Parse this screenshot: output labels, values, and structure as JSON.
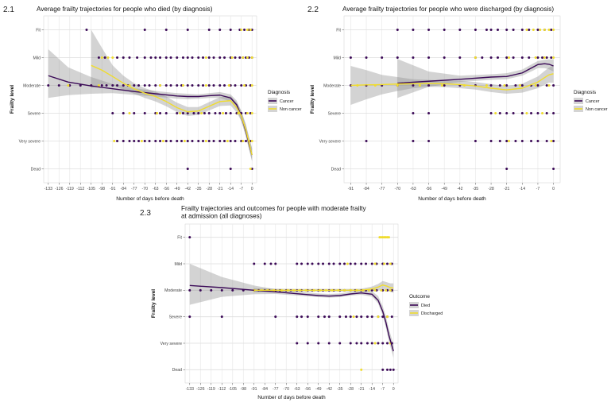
{
  "figure": {
    "colors": {
      "cancer": "#3b0a57",
      "noncancer": "#f0dc2e",
      "grid": "#e9e9e9",
      "ribbon": "#8c8c8c"
    }
  },
  "chart_data": [
    {
      "panel_label": "2.1",
      "type": "scatter",
      "title": "Average frailty trajectories for people who died (by diagnosis)",
      "xlabel": "Number of days before death",
      "ylabel": "Frailty level",
      "x_ticks": [
        -133,
        -126,
        -119,
        -112,
        -105,
        -98,
        -91,
        -84,
        -77,
        -70,
        -63,
        -56,
        -49,
        -42,
        -35,
        -28,
        -21,
        -14,
        -7,
        0
      ],
      "xlim": [
        -136,
        3
      ],
      "y_categories": [
        "Dead",
        "Very severe",
        "Severe",
        "Moderate",
        "Mild",
        "Fit"
      ],
      "legend": {
        "title": "Diagnosis",
        "position": "right",
        "entries": [
          "Cancer",
          "Non cancer"
        ]
      },
      "grid": true,
      "points": {
        "Fit": {
          "Cancer": [
            -108,
            -70,
            -56,
            -42,
            -28,
            -21,
            -14,
            -8,
            -5,
            -2,
            0
          ],
          "Non cancer": [
            -7,
            -3,
            -1
          ]
        },
        "Mild": {
          "Cancer": [
            -100,
            -96,
            -88,
            -84,
            -80,
            -75,
            -70,
            -66,
            -63,
            -60,
            -56,
            -53,
            -49,
            -45,
            -42,
            -39,
            -35,
            -32,
            -28,
            -25,
            -21,
            -18,
            -14,
            -11,
            -8,
            -6,
            -4,
            -2,
            0
          ],
          "Non cancer": [
            -98,
            -94,
            -91,
            -30,
            -13,
            -6,
            -3,
            0
          ]
        },
        "Moderate": {
          "Cancer": [
            -133,
            -126,
            -119,
            -112,
            -105,
            -98,
            -95,
            -91,
            -88,
            -84,
            -81,
            -77,
            -74,
            -70,
            -67,
            -63,
            -60,
            -56,
            -53,
            -49,
            -46,
            -42,
            -39,
            -35,
            -32,
            -28,
            -25,
            -21,
            -18,
            -14,
            -11,
            -7,
            -4,
            -1
          ],
          "Non cancer": [
            -120,
            -100,
            -80,
            -60,
            -45,
            -30,
            -15,
            -5,
            0
          ]
        },
        "Severe": {
          "Cancer": [
            -91,
            -84,
            -77,
            -70,
            -63,
            -60,
            -56,
            -49,
            -45,
            -42,
            -38,
            -35,
            -31,
            -28,
            -24,
            -21,
            -17,
            -14,
            -10,
            -7,
            -4,
            -1
          ],
          "Non cancer": [
            -80,
            -62,
            -47,
            -33,
            -19,
            -9,
            -3,
            0
          ]
        },
        "Very severe": {
          "Cancer": [
            -88,
            -84,
            -80,
            -77,
            -74,
            -70,
            -67,
            -63,
            -60,
            -56,
            -53,
            -49,
            -46,
            -42,
            -39,
            -35,
            -32,
            -28,
            -25,
            -21,
            -18,
            -14,
            -11,
            -7,
            -4,
            -1
          ],
          "Non cancer": [
            -90,
            -72,
            -58,
            -44,
            -30,
            -16,
            -6,
            -2,
            0
          ]
        },
        "Dead": {
          "Cancer": [
            -42,
            -14,
            0
          ],
          "Non cancer": [
            -1
          ]
        }
      },
      "series": [
        {
          "name": "Cancer",
          "x": [
            -133,
            -120,
            -105,
            -91,
            -77,
            -63,
            -49,
            -42,
            -35,
            -28,
            -21,
            -14,
            -10,
            -7,
            -4,
            -2,
            0
          ],
          "y": [
            3.35,
            3.12,
            2.98,
            2.88,
            2.78,
            2.7,
            2.62,
            2.6,
            2.6,
            2.63,
            2.65,
            2.55,
            2.3,
            1.9,
            1.35,
            0.9,
            0.5
          ],
          "ci_low": [
            2.55,
            2.65,
            2.7,
            2.72,
            2.66,
            2.6,
            2.52,
            2.5,
            2.52,
            2.55,
            2.55,
            2.42,
            2.15,
            1.72,
            1.15,
            0.7,
            0.28
          ],
          "ci_high": [
            4.3,
            3.65,
            3.3,
            3.05,
            2.9,
            2.8,
            2.72,
            2.7,
            2.68,
            2.72,
            2.76,
            2.68,
            2.45,
            2.08,
            1.55,
            1.12,
            0.75
          ]
        },
        {
          "name": "Non cancer",
          "x": [
            -105,
            -98,
            -91,
            -84,
            -77,
            -70,
            -63,
            -56,
            -49,
            -42,
            -35,
            -28,
            -21,
            -14,
            -10,
            -7,
            -4,
            -2,
            0
          ],
          "y": [
            3.72,
            3.55,
            3.32,
            3.08,
            2.88,
            2.72,
            2.6,
            2.42,
            2.2,
            2.05,
            2.08,
            2.25,
            2.42,
            2.45,
            2.2,
            1.9,
            1.4,
            0.95,
            0.5
          ],
          "ci_low": [
            2.9,
            3.05,
            3.0,
            2.85,
            2.7,
            2.55,
            2.42,
            2.25,
            2.04,
            1.9,
            1.94,
            2.1,
            2.26,
            2.28,
            2.02,
            1.72,
            1.2,
            0.74,
            0.28
          ],
          "ci_high": [
            5.0,
            4.35,
            3.72,
            3.35,
            3.08,
            2.9,
            2.78,
            2.6,
            2.38,
            2.22,
            2.22,
            2.4,
            2.58,
            2.62,
            2.38,
            2.08,
            1.6,
            1.16,
            0.72
          ]
        }
      ]
    },
    {
      "panel_label": "2.2",
      "type": "scatter",
      "title": "Average frailty trajectories for people who were discharged (by diagnosis)",
      "xlabel": "Number of days before death",
      "ylabel": "Frailty level",
      "x_ticks": [
        -91,
        -84,
        -77,
        -70,
        -63,
        -56,
        -49,
        -42,
        -35,
        -28,
        -21,
        -14,
        -7,
        0
      ],
      "xlim": [
        -94,
        3
      ],
      "y_categories": [
        "Dead",
        "Very severe",
        "Severe",
        "Moderate",
        "Mild",
        "Fit"
      ],
      "legend": {
        "title": "Diagnosis",
        "position": "right",
        "entries": [
          "Cancer",
          "Non cancer"
        ]
      },
      "grid": true,
      "points": {
        "Fit": {
          "Cancer": [
            -70,
            -63,
            -56,
            -49,
            -42,
            -35,
            -30,
            -28,
            -25,
            -21,
            -18,
            -14,
            -11,
            -7,
            -4,
            -1
          ],
          "Non cancer": [
            -12,
            -9,
            -6,
            -4,
            -2,
            0
          ]
        },
        "Mild": {
          "Cancer": [
            -91,
            -84,
            -77,
            -70,
            -63,
            -56,
            -49,
            -42,
            -35,
            -32,
            -28,
            -25,
            -21,
            -18,
            -14,
            -11,
            -7,
            -5,
            -3,
            -1
          ],
          "Non cancer": [
            -35,
            -20,
            -8,
            -4,
            0
          ]
        },
        "Moderate": {
          "Cancer": [
            -91,
            -84,
            -77,
            -70,
            -63,
            -56,
            -49,
            -42,
            -35,
            -28,
            -24,
            -21,
            -17,
            -14,
            -10,
            -7,
            -3,
            0
          ],
          "Non cancer": [
            -88,
            -80,
            -70,
            -60,
            -50,
            -40,
            -30,
            -22,
            -15,
            -8,
            -2
          ]
        },
        "Severe": {
          "Cancer": [
            -63,
            -56,
            -28,
            -24,
            -21,
            -18,
            -14,
            -10,
            -7,
            -3,
            0
          ],
          "Non cancer": [
            -26,
            -12,
            -5
          ]
        },
        "Very severe": {
          "Cancer": [
            -84,
            -63,
            -56,
            -35,
            -28,
            -24,
            -21,
            -17,
            -14,
            -10,
            -7,
            -3,
            0
          ],
          "Non cancer": [
            -20,
            -1
          ]
        },
        "Dead": {
          "Cancer": [
            -21,
            0
          ],
          "Non cancer": []
        }
      },
      "series": [
        {
          "name": "Cancer",
          "x": [
            -70,
            -56,
            -42,
            -28,
            -21,
            -14,
            -10,
            -7,
            -4,
            -2,
            0
          ],
          "y": [
            3.08,
            3.15,
            3.22,
            3.3,
            3.32,
            3.45,
            3.62,
            3.75,
            3.78,
            3.76,
            3.7
          ],
          "ci_low": [
            2.55,
            2.95,
            3.12,
            3.2,
            3.22,
            3.35,
            3.5,
            3.62,
            3.62,
            3.58,
            3.5
          ],
          "ci_high": [
            3.95,
            3.5,
            3.35,
            3.4,
            3.44,
            3.57,
            3.75,
            3.88,
            3.92,
            3.94,
            3.94
          ]
        },
        {
          "name": "Non cancer",
          "x": [
            -91,
            -84,
            -77,
            -70,
            -63,
            -56,
            -49,
            -42,
            -35,
            -28,
            -21,
            -14,
            -7,
            -4,
            -2,
            0
          ],
          "y": [
            3.0,
            3.02,
            3.03,
            3.05,
            3.06,
            3.07,
            3.06,
            3.03,
            2.98,
            2.9,
            2.84,
            2.9,
            3.12,
            3.28,
            3.38,
            3.42
          ],
          "ci_low": [
            2.3,
            2.5,
            2.68,
            2.8,
            2.9,
            2.95,
            2.94,
            2.9,
            2.85,
            2.76,
            2.7,
            2.74,
            2.9,
            3.02,
            3.1,
            3.1
          ],
          "ci_high": [
            3.7,
            3.55,
            3.38,
            3.3,
            3.22,
            3.2,
            3.18,
            3.16,
            3.12,
            3.05,
            2.98,
            3.06,
            3.32,
            3.52,
            3.64,
            3.72
          ]
        }
      ]
    },
    {
      "panel_label": "2.3",
      "type": "scatter",
      "title": "Frailty trajectories and outcomes for people with moderate frailty at admission (all diagnoses)",
      "title_lines": [
        "Frailty trajectories and outcomes for people with moderate frailty",
        "at admission (all diagnoses)"
      ],
      "xlabel": "Number of days before death",
      "ylabel": "Frailty level",
      "x_ticks": [
        -133,
        -126,
        -119,
        -112,
        -105,
        -98,
        -91,
        -84,
        -77,
        -70,
        -63,
        -56,
        -49,
        -42,
        -35,
        -28,
        -21,
        -14,
        -7,
        0
      ],
      "xlim": [
        -136,
        3
      ],
      "y_categories": [
        "Dead",
        "Very severe",
        "Severe",
        "Moderate",
        "Mild",
        "Fit"
      ],
      "legend": {
        "title": "Outcome",
        "position": "right",
        "entries": [
          "Died",
          "Discharged"
        ]
      },
      "grid": true,
      "points": {
        "Fit": {
          "Died": [
            -133
          ],
          "Discharged": [
            -9,
            -8,
            -7,
            -6,
            -5,
            -4,
            -3
          ]
        },
        "Mild": {
          "Died": [
            -91,
            -84,
            -80,
            -77,
            -63,
            -60,
            -56,
            -53,
            -49,
            -46,
            -42,
            -39,
            -35,
            -32,
            -28,
            -25,
            -21,
            -18,
            -14,
            -11,
            -7,
            -4,
            -1
          ],
          "Discharged": [
            -30,
            -12,
            -6,
            -2
          ]
        },
        "Moderate": {
          "Died": [
            -133,
            -126,
            -119,
            -112,
            -105,
            -98,
            -91,
            -88,
            -84,
            -81,
            -77,
            -74,
            -70,
            -67,
            -63,
            -60,
            -56,
            -53,
            -49,
            -46,
            -42,
            -39,
            -35,
            -32,
            -28,
            -25,
            -21,
            -18,
            -14,
            -11,
            -7,
            -4,
            -1
          ],
          "Discharged": [
            -91,
            -86,
            -82,
            -78,
            -73,
            -69,
            -65,
            -61,
            -57,
            -52,
            -48,
            -44,
            -40,
            -36,
            -32,
            -28,
            -24,
            -20,
            -16,
            -12,
            -8,
            -5,
            -2
          ]
        },
        "Severe": {
          "Died": [
            -133,
            -112,
            -77,
            -63,
            -60,
            -56,
            -49,
            -45,
            -42,
            -35,
            -31,
            -28,
            -24,
            -21,
            -17,
            -14,
            -10,
            -7,
            -4,
            -1
          ],
          "Discharged": [
            -26,
            -10,
            -4
          ]
        },
        "Very severe": {
          "Died": [
            -63,
            -56,
            -49,
            -42,
            -35,
            -28,
            -24,
            -21,
            -17,
            -14,
            -10,
            -7,
            -4,
            -1
          ],
          "Discharged": [
            -12,
            -2
          ]
        },
        "Dead": {
          "Died": [
            -7,
            -4,
            -2,
            0
          ],
          "Discharged": [
            -21
          ]
        }
      },
      "series": [
        {
          "name": "Died",
          "x": [
            -133,
            -112,
            -91,
            -77,
            -63,
            -49,
            -42,
            -35,
            -28,
            -21,
            -14,
            -10,
            -7,
            -5,
            -3,
            -1,
            0
          ],
          "y": [
            3.18,
            3.1,
            3.0,
            2.94,
            2.87,
            2.8,
            2.78,
            2.8,
            2.86,
            2.9,
            2.85,
            2.62,
            2.2,
            1.8,
            1.3,
            0.9,
            0.7
          ],
          "ci_low": [
            2.45,
            2.75,
            2.85,
            2.86,
            2.8,
            2.74,
            2.72,
            2.74,
            2.8,
            2.83,
            2.76,
            2.5,
            2.04,
            1.6,
            1.08,
            0.66,
            0.45
          ],
          "ci_high": [
            4.0,
            3.5,
            3.18,
            3.04,
            2.96,
            2.88,
            2.86,
            2.88,
            2.94,
            2.98,
            2.96,
            2.78,
            2.4,
            2.02,
            1.55,
            1.15,
            0.96
          ]
        },
        {
          "name": "Discharged",
          "x": [
            -91,
            -77,
            -63,
            -49,
            -35,
            -28,
            -21,
            -14,
            -10,
            -7,
            -4,
            -2,
            0
          ],
          "y": [
            3.0,
            3.0,
            3.0,
            3.0,
            3.0,
            3.0,
            3.0,
            3.05,
            3.12,
            3.2,
            3.15,
            3.1,
            3.08
          ],
          "ci_low": [
            2.92,
            2.94,
            2.95,
            2.95,
            2.95,
            2.95,
            2.94,
            2.96,
            3.0,
            3.05,
            3.0,
            2.94,
            2.9
          ],
          "ci_high": [
            3.08,
            3.06,
            3.05,
            3.05,
            3.05,
            3.05,
            3.06,
            3.14,
            3.24,
            3.35,
            3.3,
            3.26,
            3.26
          ]
        }
      ]
    }
  ]
}
